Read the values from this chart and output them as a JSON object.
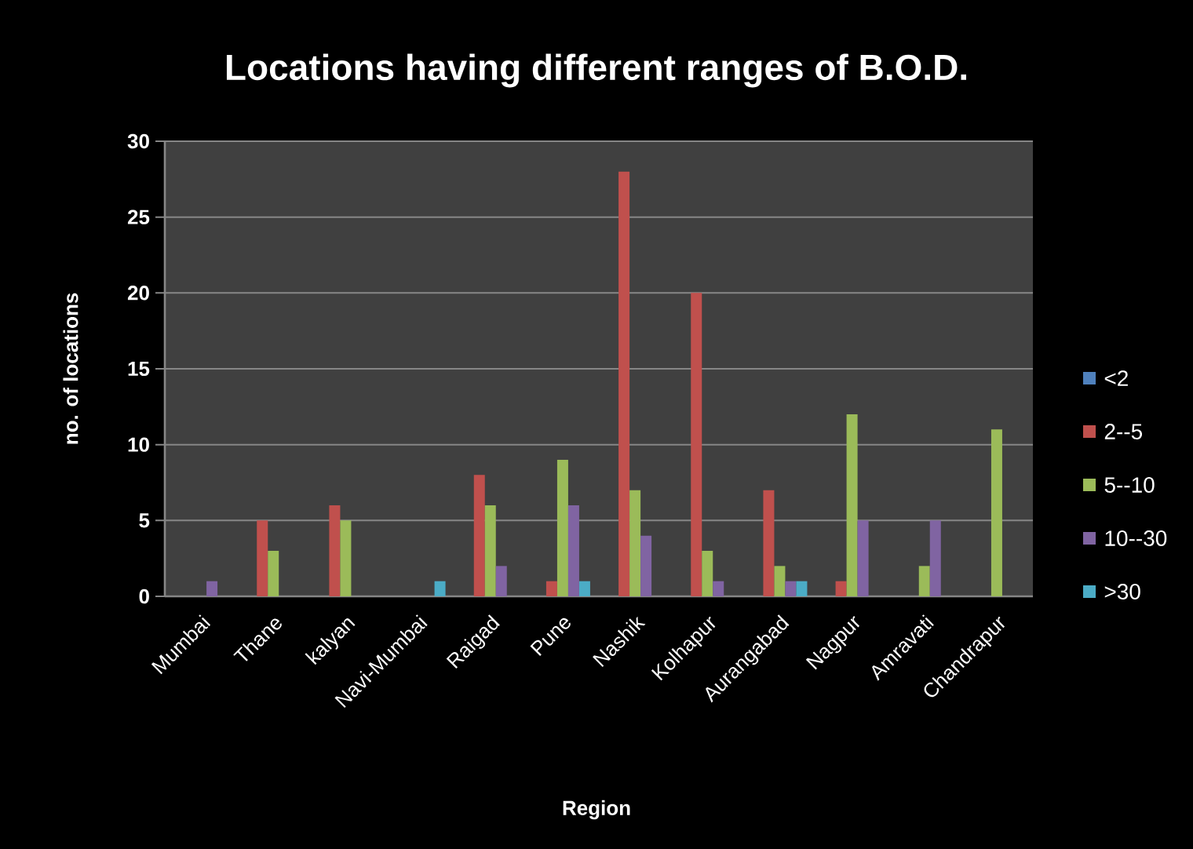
{
  "chart_data": {
    "type": "bar",
    "title": "Locations having different ranges of B.O.D.",
    "xlabel": "Region",
    "ylabel": "no. of locations",
    "categories": [
      "Mumbai",
      "Thane",
      "kalyan",
      "Navi-Mumbai",
      "Raigad",
      "Pune",
      "Nashik",
      "Kolhapur",
      "Aurangabad",
      "Nagpur",
      "Amravati",
      "Chandrapur"
    ],
    "series": [
      {
        "name": "<2",
        "color": "#4f81bd",
        "values": [
          null,
          null,
          null,
          null,
          null,
          null,
          null,
          null,
          null,
          null,
          null,
          null
        ]
      },
      {
        "name": "2--5",
        "color": "#c0504d",
        "values": [
          null,
          5,
          6,
          null,
          8,
          1,
          28,
          20,
          7,
          1,
          null,
          null
        ]
      },
      {
        "name": "5--10",
        "color": "#9bbb59",
        "values": [
          null,
          3,
          5,
          null,
          6,
          9,
          7,
          3,
          2,
          12,
          2,
          11
        ]
      },
      {
        "name": "10--30",
        "color": "#8064a2",
        "values": [
          1,
          null,
          null,
          null,
          2,
          6,
          4,
          1,
          1,
          5,
          5,
          null
        ]
      },
      {
        "name": ">30",
        "color": "#4bacc6",
        "values": [
          null,
          null,
          null,
          1,
          null,
          1,
          null,
          null,
          1,
          null,
          null,
          null
        ]
      }
    ],
    "ylim": [
      0,
      30
    ],
    "yticks": [
      0,
      5,
      10,
      15,
      20,
      25,
      30
    ],
    "grid": "y",
    "legend": "right"
  }
}
